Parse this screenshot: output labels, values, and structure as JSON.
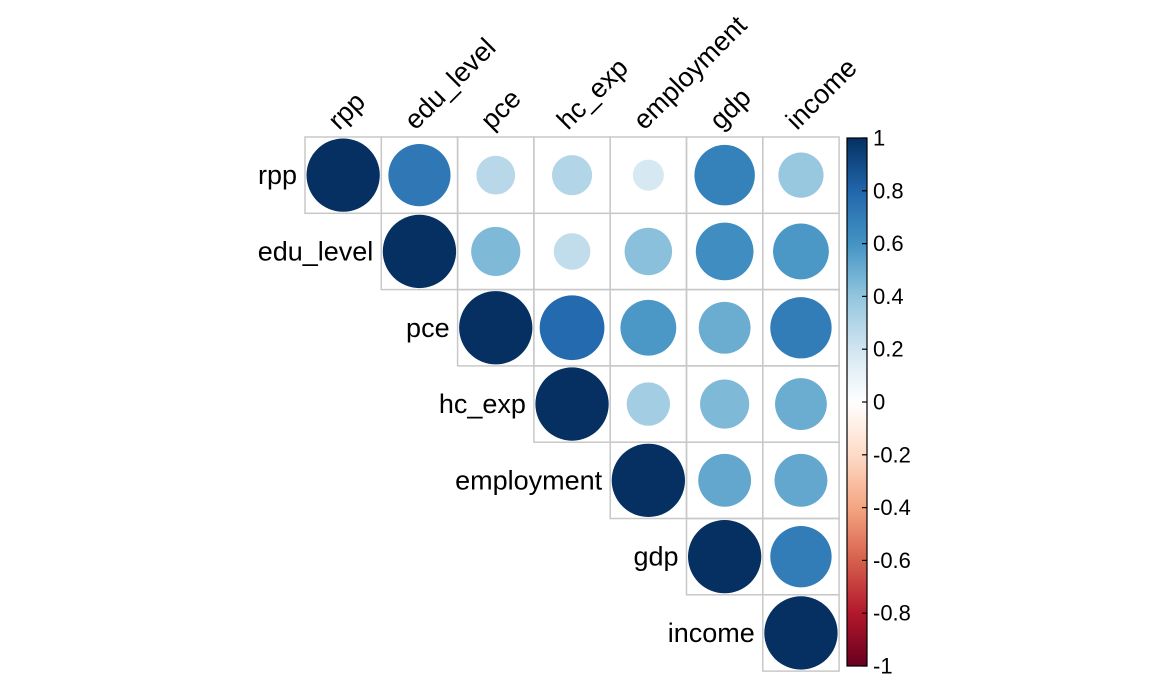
{
  "chart_data": {
    "type": "heatmap",
    "style": "corrplot-circle-upper",
    "variables": [
      "rpp",
      "edu_level",
      "pce",
      "hc_exp",
      "employment",
      "gdp",
      "income"
    ],
    "correlations": [
      [
        1.0,
        0.72,
        0.28,
        0.3,
        0.18,
        0.68,
        0.38
      ],
      [
        0.72,
        1.0,
        0.45,
        0.25,
        0.42,
        0.62,
        0.58
      ],
      [
        0.28,
        0.45,
        1.0,
        0.78,
        0.58,
        0.5,
        0.7
      ],
      [
        0.3,
        0.25,
        0.78,
        1.0,
        0.35,
        0.45,
        0.5
      ],
      [
        0.18,
        0.42,
        0.58,
        0.35,
        1.0,
        0.52,
        0.52
      ],
      [
        0.68,
        0.62,
        0.5,
        0.45,
        0.52,
        1.0,
        0.7
      ],
      [
        0.38,
        0.58,
        0.7,
        0.5,
        0.52,
        0.7,
        1.0
      ]
    ],
    "colorbar": {
      "min": -1,
      "max": 1,
      "ticks": [
        1,
        0.8,
        0.6,
        0.4,
        0.2,
        0,
        -0.2,
        -0.4,
        -0.6,
        -0.8,
        -1
      ],
      "tick_labels": [
        "1",
        "0.8",
        "0.6",
        "0.4",
        "0.2",
        "0",
        "-0.2",
        "-0.4",
        "-0.6",
        "-0.8",
        "-1"
      ],
      "placement": "right"
    },
    "colors": {
      "palette": [
        "#67001F",
        "#B2182B",
        "#D6604D",
        "#F4A582",
        "#FDDBC7",
        "#FFFFFF",
        "#D1E5F0",
        "#92C5DE",
        "#4393C3",
        "#2166AC",
        "#053061"
      ],
      "grid": "#C8C8C8"
    }
  }
}
